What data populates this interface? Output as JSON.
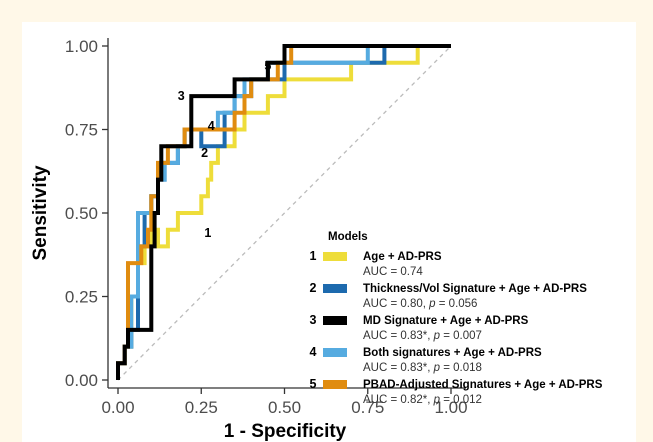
{
  "chart_data": {
    "type": "line",
    "xlabel": "1 - Specificity",
    "ylabel": "Sensitivity",
    "xlim": [
      0,
      1
    ],
    "ylim": [
      0,
      1
    ],
    "x_ticks": [
      "0.00",
      "0.25",
      "0.50",
      "0.75",
      "1.00"
    ],
    "y_ticks": [
      "0.00",
      "0.25",
      "0.50",
      "0.75",
      "1.00"
    ],
    "grid": false,
    "reference_line": "dashed diagonal",
    "legend": {
      "title": "Models",
      "placement": "right",
      "items": [
        {
          "number": "1",
          "label": "Age + AD-PRS",
          "auc_prefix": "AUC = 0.74",
          "p_value": ""
        },
        {
          "number": "2",
          "label": "Thickness/Vol Signature + Age + AD-PRS",
          "auc_prefix": "AUC = 0.80,",
          "p_value": "= 0.056"
        },
        {
          "number": "3",
          "label": "MD Signature + Age + AD-PRS",
          "auc_prefix": "AUC = 0.83*,",
          "p_value": "= 0.007"
        },
        {
          "number": "4",
          "label": "Both signatures + Age + AD-PRS",
          "auc_prefix": "AUC = 0.83*,",
          "p_value": "= 0.018"
        },
        {
          "number": "5",
          "label": "PBAD-Adjusted Signatures + Age + AD-PRS",
          "auc_prefix": "AUC = 0.82*,",
          "p_value": "= 0.012"
        }
      ]
    },
    "series": [
      {
        "id": "1",
        "color": "#EEDD3A",
        "label_at": [
          0.27,
          0.44
        ],
        "points": [
          [
            0,
            0
          ],
          [
            0,
            0.05
          ],
          [
            0.02,
            0.05
          ],
          [
            0.02,
            0.1
          ],
          [
            0.04,
            0.1
          ],
          [
            0.04,
            0.25
          ],
          [
            0.06,
            0.25
          ],
          [
            0.06,
            0.35
          ],
          [
            0.08,
            0.35
          ],
          [
            0.08,
            0.4
          ],
          [
            0.1,
            0.4
          ],
          [
            0.1,
            0.45
          ],
          [
            0.12,
            0.45
          ],
          [
            0.12,
            0.4
          ],
          [
            0.15,
            0.4
          ],
          [
            0.15,
            0.45
          ],
          [
            0.18,
            0.45
          ],
          [
            0.18,
            0.5
          ],
          [
            0.25,
            0.5
          ],
          [
            0.25,
            0.55
          ],
          [
            0.27,
            0.55
          ],
          [
            0.27,
            0.6
          ],
          [
            0.28,
            0.6
          ],
          [
            0.28,
            0.65
          ],
          [
            0.3,
            0.65
          ],
          [
            0.3,
            0.7
          ],
          [
            0.35,
            0.7
          ],
          [
            0.35,
            0.75
          ],
          [
            0.38,
            0.75
          ],
          [
            0.38,
            0.8
          ],
          [
            0.45,
            0.8
          ],
          [
            0.45,
            0.85
          ],
          [
            0.5,
            0.85
          ],
          [
            0.5,
            0.9
          ],
          [
            0.7,
            0.9
          ],
          [
            0.7,
            0.95
          ],
          [
            0.9,
            0.95
          ],
          [
            0.9,
            1.0
          ],
          [
            1.0,
            1.0
          ]
        ]
      },
      {
        "id": "2",
        "color": "#1D6AAE",
        "label_at": [
          0.26,
          0.68
        ],
        "points": [
          [
            0,
            0
          ],
          [
            0,
            0.05
          ],
          [
            0.02,
            0.05
          ],
          [
            0.02,
            0.1
          ],
          [
            0.04,
            0.1
          ],
          [
            0.04,
            0.15
          ],
          [
            0.06,
            0.15
          ],
          [
            0.06,
            0.4
          ],
          [
            0.08,
            0.4
          ],
          [
            0.08,
            0.5
          ],
          [
            0.1,
            0.5
          ],
          [
            0.1,
            0.55
          ],
          [
            0.12,
            0.55
          ],
          [
            0.12,
            0.6
          ],
          [
            0.14,
            0.6
          ],
          [
            0.14,
            0.65
          ],
          [
            0.18,
            0.65
          ],
          [
            0.18,
            0.7
          ],
          [
            0.2,
            0.7
          ],
          [
            0.2,
            0.75
          ],
          [
            0.25,
            0.75
          ],
          [
            0.25,
            0.7
          ],
          [
            0.32,
            0.7
          ],
          [
            0.32,
            0.8
          ],
          [
            0.35,
            0.8
          ],
          [
            0.35,
            0.85
          ],
          [
            0.4,
            0.85
          ],
          [
            0.4,
            0.9
          ],
          [
            0.5,
            0.9
          ],
          [
            0.5,
            0.95
          ],
          [
            0.8,
            0.95
          ],
          [
            0.8,
            1.0
          ],
          [
            1.0,
            1.0
          ]
        ]
      },
      {
        "id": "3",
        "color": "#000000",
        "label_at": [
          0.19,
          0.85
        ],
        "points": [
          [
            0,
            0
          ],
          [
            0,
            0.05
          ],
          [
            0.02,
            0.05
          ],
          [
            0.02,
            0.1
          ],
          [
            0.03,
            0.1
          ],
          [
            0.03,
            0.15
          ],
          [
            0.1,
            0.15
          ],
          [
            0.1,
            0.4
          ],
          [
            0.11,
            0.4
          ],
          [
            0.11,
            0.5
          ],
          [
            0.12,
            0.5
          ],
          [
            0.12,
            0.6
          ],
          [
            0.13,
            0.6
          ],
          [
            0.13,
            0.7
          ],
          [
            0.22,
            0.7
          ],
          [
            0.22,
            0.85
          ],
          [
            0.35,
            0.85
          ],
          [
            0.35,
            0.9
          ],
          [
            0.45,
            0.9
          ],
          [
            0.45,
            0.95
          ],
          [
            0.5,
            0.95
          ],
          [
            0.5,
            1.0
          ],
          [
            1.0,
            1.0
          ]
        ]
      },
      {
        "id": "4",
        "color": "#56ABE0",
        "label_at": [
          0.28,
          0.76
        ],
        "points": [
          [
            0,
            0
          ],
          [
            0,
            0.05
          ],
          [
            0.02,
            0.05
          ],
          [
            0.02,
            0.1
          ],
          [
            0.04,
            0.1
          ],
          [
            0.04,
            0.25
          ],
          [
            0.06,
            0.25
          ],
          [
            0.06,
            0.5
          ],
          [
            0.1,
            0.5
          ],
          [
            0.1,
            0.55
          ],
          [
            0.12,
            0.55
          ],
          [
            0.12,
            0.6
          ],
          [
            0.14,
            0.6
          ],
          [
            0.14,
            0.65
          ],
          [
            0.18,
            0.65
          ],
          [
            0.18,
            0.7
          ],
          [
            0.2,
            0.7
          ],
          [
            0.2,
            0.75
          ],
          [
            0.3,
            0.75
          ],
          [
            0.3,
            0.8
          ],
          [
            0.35,
            0.8
          ],
          [
            0.35,
            0.85
          ],
          [
            0.38,
            0.85
          ],
          [
            0.38,
            0.9
          ],
          [
            0.45,
            0.9
          ],
          [
            0.45,
            0.95
          ],
          [
            0.75,
            0.95
          ],
          [
            0.75,
            1.0
          ],
          [
            1.0,
            1.0
          ]
        ]
      },
      {
        "id": "5",
        "color": "#E08C10",
        "label_at": [
          0.45,
          0.94
        ],
        "points": [
          [
            0,
            0
          ],
          [
            0,
            0.05
          ],
          [
            0.02,
            0.05
          ],
          [
            0.02,
            0.1
          ],
          [
            0.03,
            0.1
          ],
          [
            0.03,
            0.35
          ],
          [
            0.07,
            0.35
          ],
          [
            0.07,
            0.4
          ],
          [
            0.09,
            0.4
          ],
          [
            0.09,
            0.45
          ],
          [
            0.1,
            0.45
          ],
          [
            0.1,
            0.55
          ],
          [
            0.12,
            0.55
          ],
          [
            0.12,
            0.65
          ],
          [
            0.15,
            0.65
          ],
          [
            0.15,
            0.7
          ],
          [
            0.2,
            0.7
          ],
          [
            0.2,
            0.75
          ],
          [
            0.35,
            0.75
          ],
          [
            0.35,
            0.8
          ],
          [
            0.38,
            0.8
          ],
          [
            0.38,
            0.85
          ],
          [
            0.4,
            0.85
          ],
          [
            0.4,
            0.9
          ],
          [
            0.48,
            0.9
          ],
          [
            0.48,
            0.95
          ],
          [
            0.52,
            0.95
          ],
          [
            0.52,
            1.0
          ],
          [
            1.0,
            1.0
          ]
        ]
      }
    ]
  }
}
